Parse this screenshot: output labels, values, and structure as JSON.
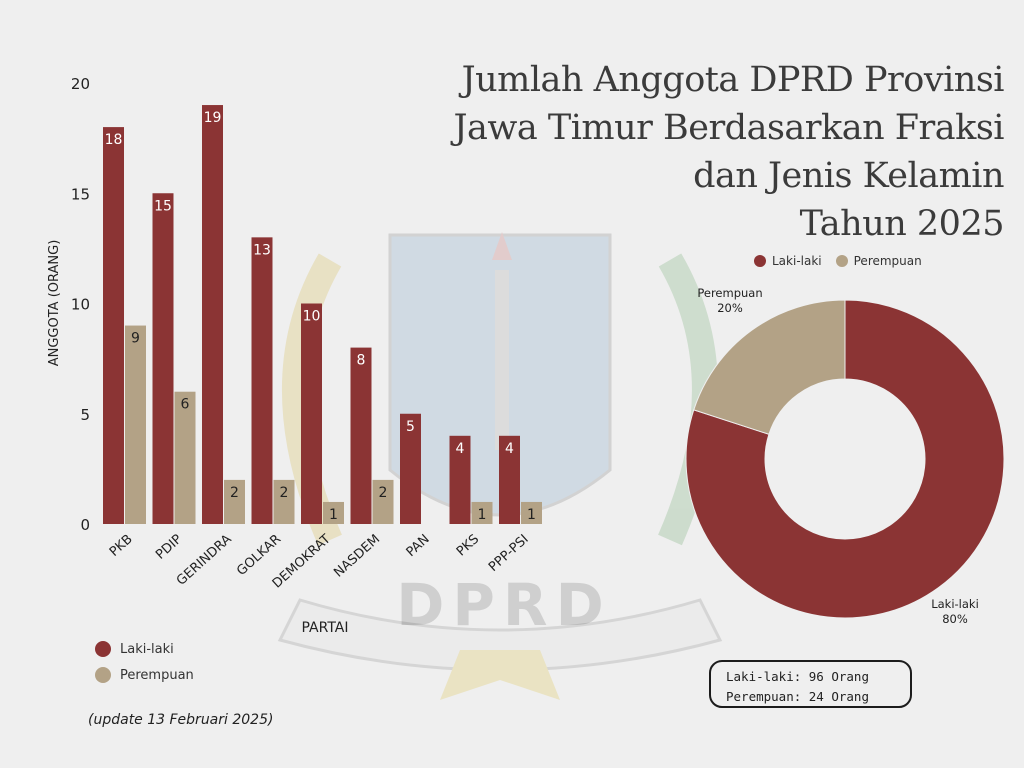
{
  "title_lines": [
    "Jumlah Anggota DPRD Provinsi",
    "Jawa Timur Berdasarkan Fraksi",
    "dan Jenis Kelamin",
    "Tahun 2025"
  ],
  "colors": {
    "laki": "#8b3434",
    "perempuan": "#b3a286",
    "background": "#efefef"
  },
  "watermark_text": "DPRD",
  "legend": {
    "laki_label": "Laki-laki",
    "perempuan_label": "Perempuan"
  },
  "update_note": "(update 13 Februari 2025)",
  "summary": {
    "laki": "Laki-laki: 96 Orang",
    "perempuan": "Perempuan: 24 Orang"
  },
  "chart_data": [
    {
      "type": "bar",
      "categories": [
        "PKB",
        "PDIP",
        "GERINDRA",
        "GOLKAR",
        "DEMOKRAT",
        "NASDEM",
        "PAN",
        "PKS",
        "PPP-PSI"
      ],
      "series": [
        {
          "name": "Laki-laki",
          "color": "#8b3434",
          "values": [
            18,
            15,
            19,
            13,
            10,
            8,
            5,
            4,
            4
          ]
        },
        {
          "name": "Perempuan",
          "color": "#b3a286",
          "values": [
            9,
            6,
            2,
            2,
            1,
            2,
            0,
            1,
            1
          ]
        }
      ],
      "xlabel": "PARTAI",
      "ylabel": "ANGGOTA (ORANG)",
      "ylim": [
        0,
        20
      ],
      "yticks": [
        0,
        5,
        10,
        15,
        20
      ],
      "grid": false,
      "data_labels": true,
      "legend_position": "bottom-left"
    },
    {
      "type": "pie",
      "donut": true,
      "labels": [
        "Laki-laki",
        "Perempuan"
      ],
      "values": [
        80,
        20
      ],
      "value_labels": [
        "80%",
        "20%"
      ],
      "colors": [
        "#8b3434",
        "#b3a286"
      ],
      "legend_position": "top"
    }
  ]
}
